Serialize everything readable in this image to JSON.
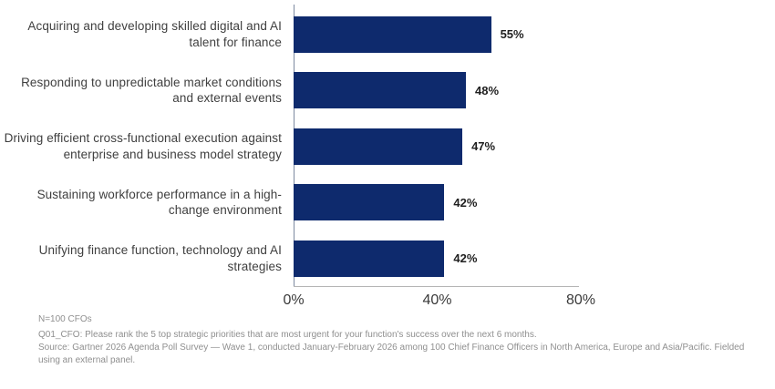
{
  "chart_data": {
    "type": "bar",
    "orientation": "horizontal",
    "title": "",
    "categories": [
      "Acquiring and developing skilled digital and AI talent for finance",
      "Responding to unpredictable market conditions and external events",
      "Driving efficient cross-functional execution against enterprise and business model strategy",
      "Sustaining workforce performance in a high-change environment",
      "Unifying finance function, technology and AI strategies"
    ],
    "values": [
      55,
      48,
      47,
      42,
      42
    ],
    "value_labels": [
      "55%",
      "48%",
      "47%",
      "42%",
      "42%"
    ],
    "xlim": [
      0,
      80
    ],
    "x_ticks": [
      "0%",
      "40%",
      "80%"
    ],
    "bar_color": "#0e2a6d",
    "grid": false,
    "legend_position": "none"
  },
  "footnotes": {
    "n_label": "N=100 CFOs",
    "question": "Q01_CFO: Please rank the 5 top strategic priorities that are most urgent for your function's success over the next 6 months.",
    "source": "Source: Gartner 2026 Agenda Poll Survey — Wave 1, conducted January-February 2026 among 100 Chief Finance Officers in North America, Europe and Asia/Pacific. Fielded using an external panel."
  }
}
